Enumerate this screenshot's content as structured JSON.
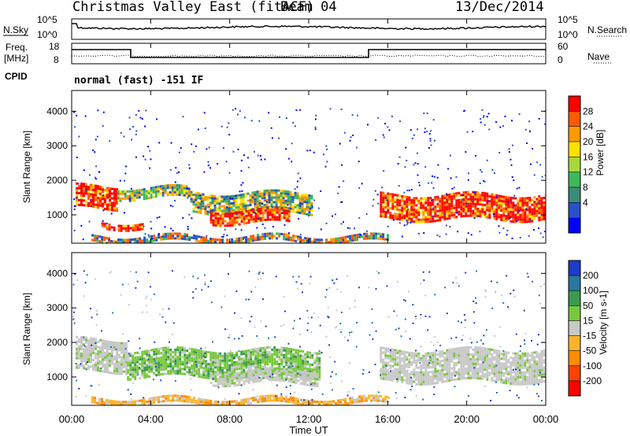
{
  "header": {
    "title": "Christmas Valley East (fitACF)",
    "beam": "Beam 04",
    "date": "13/Dec/2014"
  },
  "noise_panel": {
    "left_label": "N.Sky",
    "right_label": "N.Search",
    "ticks_left": [
      "10^5",
      "10^0"
    ],
    "ticks_right": [
      "10^5",
      "10^0"
    ]
  },
  "freq_panel": {
    "left_label_1": "Freq.",
    "left_label_2": "[MHz]",
    "right_label": "Nave",
    "ticks_left": [
      "18",
      "8"
    ],
    "ticks_right": [
      "60",
      "0"
    ]
  },
  "cpid": {
    "label": "CPID",
    "value": "normal (fast) -151 IF"
  },
  "x_axis": {
    "label": "Time UT",
    "ticks": [
      "00:00",
      "04:00",
      "08:00",
      "12:00",
      "16:00",
      "20:00",
      "00:00"
    ]
  },
  "chart_data": [
    {
      "type": "heatmap",
      "name": "power",
      "ylabel": "Slant Range [km]",
      "ylim": [
        180,
        4600
      ],
      "yticks": [
        "4000",
        "3000",
        "2000",
        "1000"
      ],
      "colorbar": {
        "label": "Power [dB]",
        "ticks": [
          "28",
          "24",
          "20",
          "16",
          "12",
          "8",
          "4"
        ],
        "colors": [
          "#ff0000",
          "#ff5a00",
          "#ff9a00",
          "#ffe000",
          "#a8d83c",
          "#3cb95a",
          "#3a8c78",
          "#2850c8",
          "#0000ff"
        ]
      },
      "regions": [
        {
          "x": [
            0.2,
            2.3
          ],
          "y": [
            1200,
            1850
          ],
          "level": "high"
        },
        {
          "x": [
            1.5,
            3.6
          ],
          "y": [
            650,
            800
          ],
          "level": "high"
        },
        {
          "x": [
            2.3,
            6.0
          ],
          "y": [
            1500,
            1800
          ],
          "level": "medium"
        },
        {
          "x": [
            6.0,
            12.2
          ],
          "y": [
            1050,
            1650
          ],
          "level": "medium"
        },
        {
          "x": [
            7.0,
            11.0
          ],
          "y": [
            800,
            1150
          ],
          "level": "high"
        },
        {
          "x": [
            15.6,
            24.0
          ],
          "y": [
            900,
            1600
          ],
          "level": "high"
        },
        {
          "x": [
            1.0,
            16.0
          ],
          "y": [
            200,
            400
          ],
          "level": "low"
        }
      ]
    },
    {
      "type": "heatmap",
      "name": "velocity",
      "ylabel": "Slant Range [km]",
      "ylim": [
        180,
        4600
      ],
      "yticks": [
        "4000",
        "3000",
        "2000",
        "1000"
      ],
      "colorbar": {
        "label": "Velocity [m s-1]",
        "ticks": [
          "200",
          "100",
          "50",
          "15",
          "-15",
          "-50",
          "-100",
          "-200"
        ],
        "colors": [
          "#1e3cc8",
          "#2878a0",
          "#3c9a50",
          "#78c83c",
          "#c8c8c8",
          "#ffb428",
          "#ff8c00",
          "#ff4000",
          "#ff0000"
        ]
      },
      "regions": [
        {
          "x": [
            0.2,
            2.8
          ],
          "y": [
            1200,
            2100
          ],
          "level": "ground"
        },
        {
          "x": [
            2.8,
            12.5
          ],
          "y": [
            1000,
            1800
          ],
          "level": "positive"
        },
        {
          "x": [
            7.0,
            12.5
          ],
          "y": [
            850,
            1200
          ],
          "level": "ground"
        },
        {
          "x": [
            15.6,
            24.0
          ],
          "y": [
            900,
            1800
          ],
          "level": "ground"
        },
        {
          "x": [
            1.0,
            16.0
          ],
          "y": [
            200,
            400
          ],
          "level": "negative"
        }
      ]
    }
  ]
}
